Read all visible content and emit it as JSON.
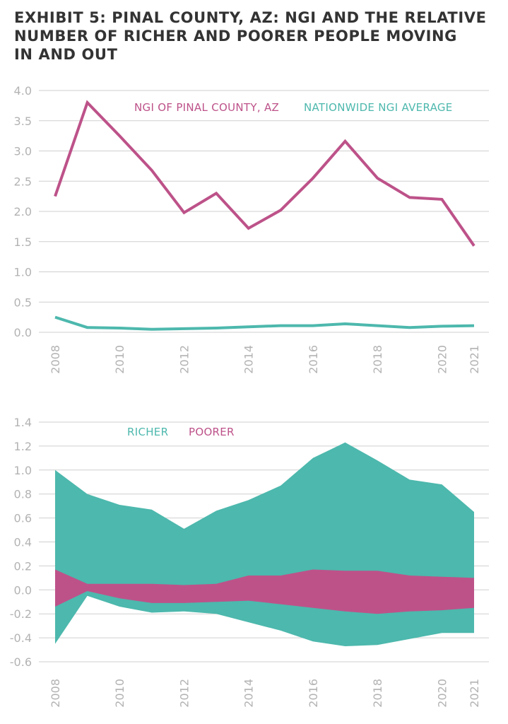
{
  "title_lines": [
    "EXHIBIT 5: PINAL COUNTY, AZ: NGI AND THE RELATIVE",
    "NUMBER OF RICHER AND POORER PEOPLE MOVING",
    "IN AND OUT"
  ],
  "colors": {
    "pink": "#bd5289",
    "teal": "#4db8ad",
    "grid": "#cfcfcf",
    "tick": "#b3b3b3",
    "title": "#333333"
  },
  "chart_data": [
    {
      "type": "line",
      "x": [
        2008,
        2009,
        2010,
        2011,
        2012,
        2013,
        2014,
        2015,
        2016,
        2017,
        2018,
        2019,
        2020,
        2021
      ],
      "xticks": [
        "2008",
        "2010",
        "2012",
        "2014",
        "2016",
        "2018",
        "2020",
        "2021"
      ],
      "yticks": [
        "0.0",
        "0.5",
        "1.0",
        "1.5",
        "2.0",
        "2.5",
        "3.0",
        "3.5",
        "4.0"
      ],
      "ylim": [
        0,
        4
      ],
      "grid": true,
      "legend_position": "top",
      "series": [
        {
          "name": "NGI OF PINAL COUNTY, AZ",
          "color": "#bd5289",
          "values": [
            2.25,
            3.8,
            3.25,
            2.68,
            1.98,
            2.3,
            1.72,
            2.02,
            2.55,
            3.16,
            2.55,
            2.23,
            2.2,
            1.43
          ]
        },
        {
          "name": "NATIONWIDE NGI AVERAGE",
          "color": "#4db8ad",
          "values": [
            0.25,
            0.08,
            0.07,
            0.05,
            0.06,
            0.07,
            0.09,
            0.11,
            0.11,
            0.14,
            0.11,
            0.08,
            0.1,
            0.11
          ]
        }
      ]
    },
    {
      "type": "area",
      "x": [
        2008,
        2009,
        2010,
        2011,
        2012,
        2013,
        2014,
        2015,
        2016,
        2017,
        2018,
        2019,
        2020,
        2021
      ],
      "xticks": [
        "2008",
        "2010",
        "2012",
        "2014",
        "2016",
        "2018",
        "2020",
        "2021"
      ],
      "yticks": [
        "-0.6",
        "-0.4",
        "-0.2",
        "0.0",
        "0.2",
        "0.4",
        "0.6",
        "0.8",
        "1.0",
        "1.2",
        "1.4"
      ],
      "ylim": [
        -0.6,
        1.4
      ],
      "grid": true,
      "legend_position": "top-left",
      "series": [
        {
          "name": "RICHER",
          "color": "#4db8ad",
          "upper": [
            1.0,
            0.8,
            0.71,
            0.67,
            0.51,
            0.66,
            0.75,
            0.87,
            1.1,
            1.23,
            1.08,
            0.92,
            0.88,
            0.65
          ],
          "lower": [
            -0.45,
            -0.05,
            -0.14,
            -0.19,
            -0.18,
            -0.2,
            -0.27,
            -0.34,
            -0.43,
            -0.47,
            -0.46,
            -0.41,
            -0.36,
            -0.36
          ]
        },
        {
          "name": "POORER",
          "color": "#bd5289",
          "upper": [
            0.17,
            0.05,
            0.05,
            0.05,
            0.04,
            0.05,
            0.12,
            0.12,
            0.17,
            0.16,
            0.16,
            0.12,
            0.11,
            0.1
          ],
          "lower": [
            -0.14,
            -0.01,
            -0.07,
            -0.11,
            -0.11,
            -0.1,
            -0.09,
            -0.12,
            -0.15,
            -0.18,
            -0.2,
            -0.18,
            -0.17,
            -0.15
          ]
        }
      ]
    }
  ]
}
